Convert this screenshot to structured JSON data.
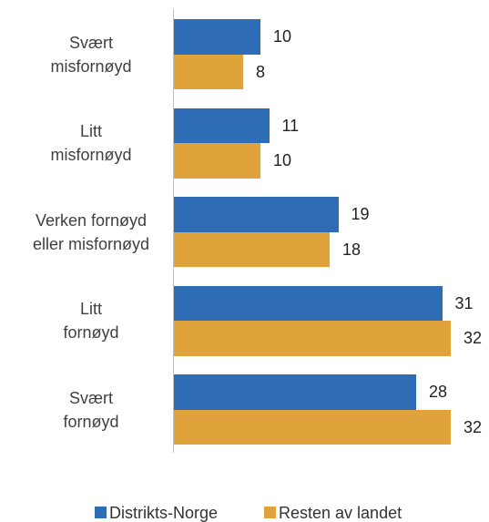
{
  "chart_data": {
    "type": "bar",
    "orientation": "horizontal",
    "categories": [
      "Svært\nmisfornøyd",
      "Litt\nmisfornøyd",
      "Verken fornøyd\neller misfornøyd",
      "Litt\nfornøyd",
      "Svært\nfornøyd"
    ],
    "series": [
      {
        "name": "Distrikts-Norge",
        "color": "#2e6db5",
        "values": [
          10,
          11,
          19,
          31,
          28
        ]
      },
      {
        "name": "Resten av landet",
        "color": "#e0a23a",
        "values": [
          8,
          10,
          18,
          32,
          32
        ]
      }
    ],
    "legend": "bottom"
  }
}
